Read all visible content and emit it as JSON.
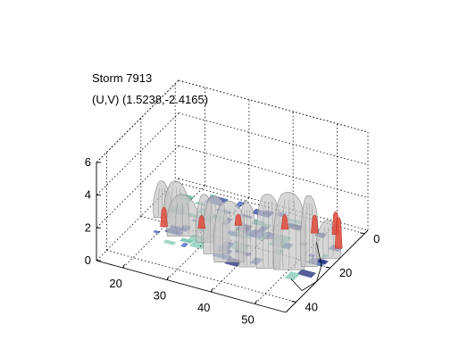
{
  "chart_data": {
    "type": "3d-isosurface",
    "title": "Storm 7913",
    "subtitle": "(U,V) (1.5238,-2.4165)",
    "title_values": {
      "U": 1.5238,
      "V": -2.4165
    },
    "xlabel": "",
    "ylabel": "",
    "zlabel": "",
    "x_ticks": [
      "20",
      "30",
      "40",
      "50"
    ],
    "y_ticks": [
      "0",
      "20",
      "40"
    ],
    "z_ticks": [
      "0",
      "2",
      "4",
      "6"
    ],
    "xlim": [
      14,
      57
    ],
    "ylim": [
      -2,
      46
    ],
    "zlim": [
      0,
      6
    ],
    "grid": true,
    "box": "dotted",
    "surfaces": [
      {
        "name": "",
        "color": "#bdbdbd",
        "kind": "gray isosurface (storm cells)"
      },
      {
        "name": "",
        "color": "#e04a3a",
        "kind": "red isosurface (cores)"
      },
      {
        "name": "",
        "color": "#2c3f9e",
        "kind": "blue floor patches"
      },
      {
        "name": "",
        "color": "#5fb3a0",
        "kind": "teal floor patches"
      }
    ],
    "cells": [
      {
        "x": 18,
        "y": 18,
        "z_top": 2.1
      },
      {
        "x": 22,
        "y": 20,
        "z_top": 2.6
      },
      {
        "x": 25,
        "y": 24,
        "z_top": 2.4
      },
      {
        "x": 30,
        "y": 24,
        "z_top": 2.8
      },
      {
        "x": 34,
        "y": 28,
        "z_top": 3.4
      },
      {
        "x": 38,
        "y": 30,
        "z_top": 3.6
      },
      {
        "x": 42,
        "y": 30,
        "z_top": 3.8
      },
      {
        "x": 46,
        "y": 28,
        "z_top": 4.4
      },
      {
        "x": 50,
        "y": 26,
        "z_top": 4.6
      },
      {
        "x": 53,
        "y": 22,
        "z_top": 4.2
      },
      {
        "x": 55,
        "y": 16,
        "z_top": 2.2
      }
    ],
    "red_cores": [
      {
        "x": 20,
        "y": 22,
        "z_top": 1.2
      },
      {
        "x": 27,
        "y": 18,
        "z_top": 0.8
      },
      {
        "x": 33,
        "y": 12,
        "z_top": 0.7
      },
      {
        "x": 42,
        "y": 8,
        "z_top": 0.9
      },
      {
        "x": 48,
        "y": 6,
        "z_top": 1.1
      },
      {
        "x": 52,
        "y": 4,
        "z_top": 1.4
      },
      {
        "x": 55,
        "y": 10,
        "z_top": 1.9
      }
    ]
  }
}
